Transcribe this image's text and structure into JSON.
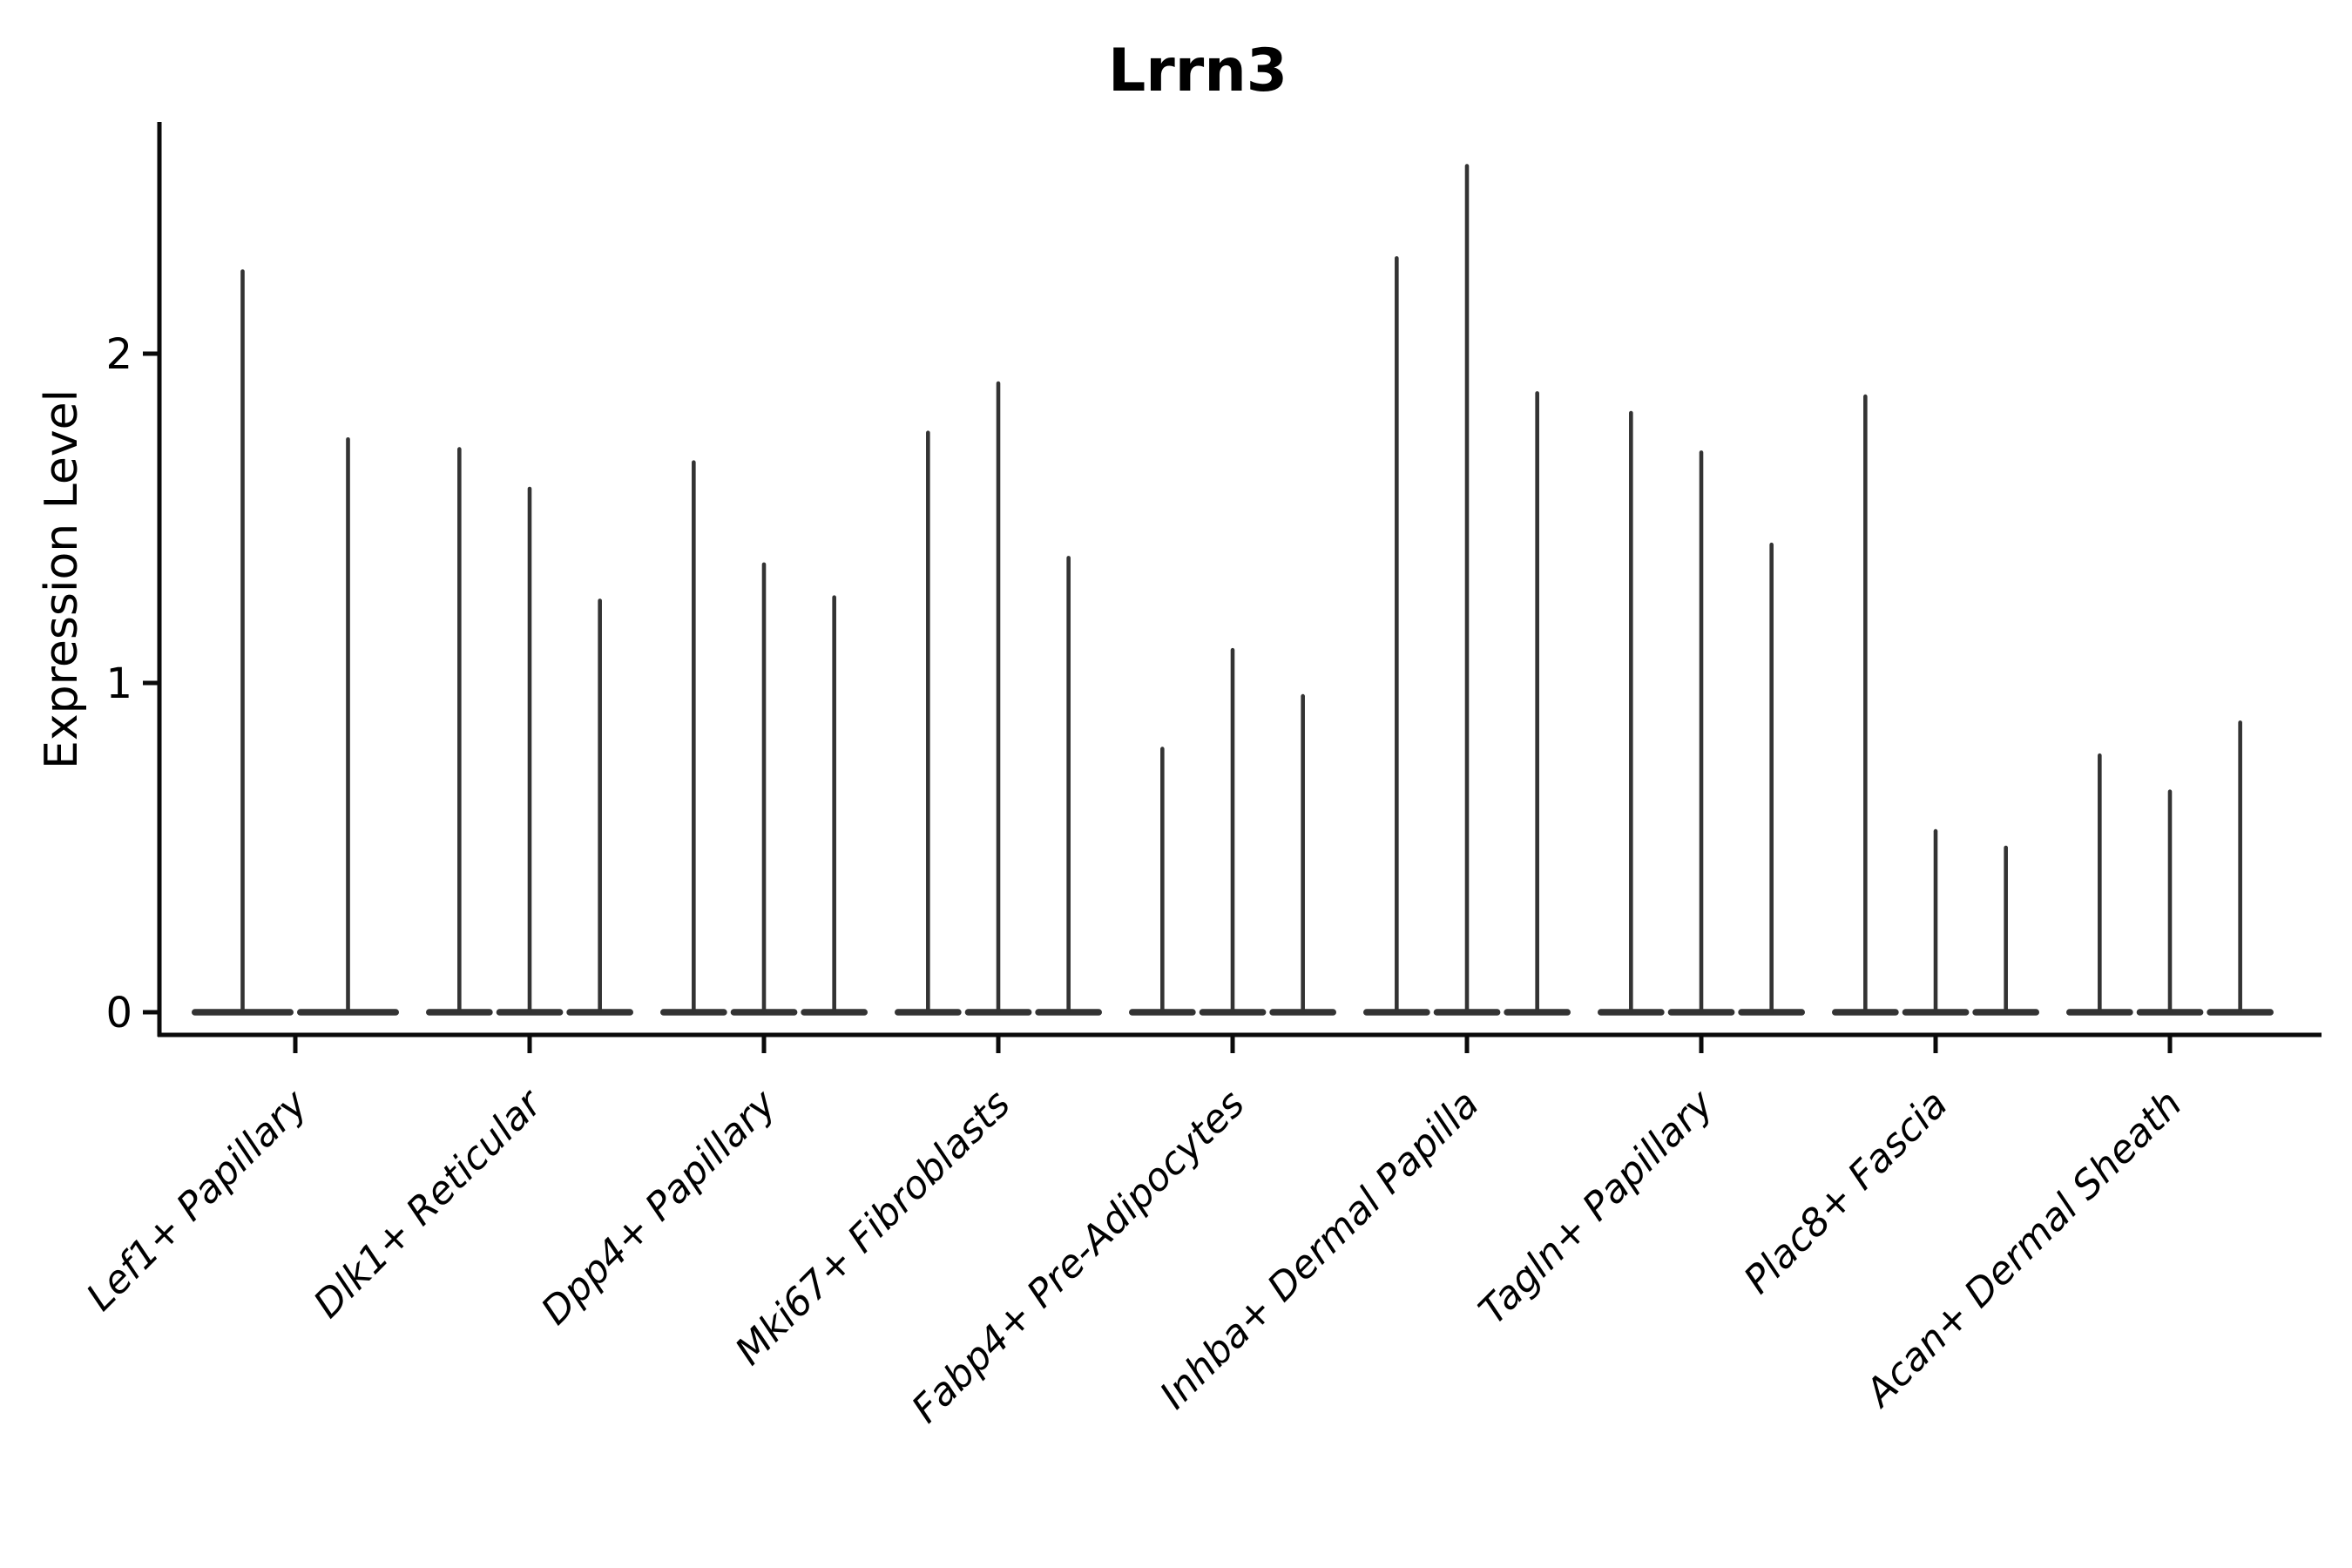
{
  "figure": {
    "title": "Lrrn3"
  },
  "chart_data": {
    "type": "violin",
    "title": "Lrrn3",
    "subtitle": "",
    "xlabel": "",
    "ylabel": "Expression Level",
    "yticks": [
      "0",
      "1",
      "2"
    ],
    "ylim": [
      -0.07,
      2.7
    ],
    "grid": "off",
    "legend_position": "none",
    "categories": [
      "Lef1+ Papillary",
      "Dlk1+ Reticular",
      "Dpp4+ Papillary",
      "Mki67+ Fibroblasts",
      "Fabp4+ Pre-Adipocytes",
      "Inhba+ Dermal Papilla",
      "Tagln+ Papillary",
      "Plac8+ Fascia",
      "Acan+ Dermal Sheath"
    ],
    "groups": [
      {
        "category": "Lef1+ Papillary",
        "violin_max_expression": [
          2.25,
          1.74
        ]
      },
      {
        "category": "Dlk1+ Reticular",
        "violin_max_expression": [
          1.71,
          1.59,
          1.25
        ]
      },
      {
        "category": "Dpp4+ Papillary",
        "violin_max_expression": [
          1.67,
          1.36,
          1.26
        ]
      },
      {
        "category": "Mki67+ Fibroblasts",
        "violin_max_expression": [
          1.76,
          1.91,
          1.38
        ]
      },
      {
        "category": "Fabp4+ Pre-Adipocytes",
        "violin_max_expression": [
          0.8,
          1.1,
          0.96
        ]
      },
      {
        "category": "Inhba+ Dermal Papilla",
        "violin_max_expression": [
          2.29,
          2.57,
          1.88
        ]
      },
      {
        "category": "Tagln+ Papillary",
        "violin_max_expression": [
          1.82,
          1.7,
          1.42
        ]
      },
      {
        "category": "Plac8+ Fascia",
        "violin_max_expression": [
          1.87,
          0.55,
          0.5
        ]
      },
      {
        "category": "Acan+ Dermal Sheath",
        "violin_max_expression": [
          0.78,
          0.67,
          0.88
        ]
      }
    ],
    "violin_description": "needle-shaped violins: wide flat density blob at expression 0 with a thin spike rising to the max expression value",
    "colors": {
      "violin": "#333333",
      "axis": "#0a0a0a",
      "text": "#000000",
      "background": "#ffffff"
    }
  }
}
